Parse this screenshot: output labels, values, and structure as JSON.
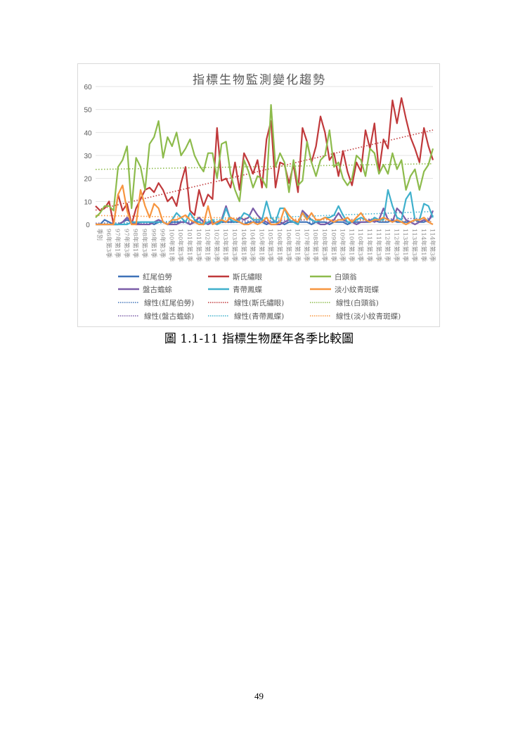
{
  "caption": "圖 1.1-11 指標生物歷年各季比較圖",
  "page_number": "49",
  "chart_data": {
    "type": "line",
    "title": "指標生物監測變化趨勢",
    "xlabel": "",
    "ylabel": "",
    "ylim": [
      0,
      60
    ],
    "yticks": [
      0,
      10,
      20,
      30,
      40,
      50,
      60
    ],
    "grid": true,
    "legend_position": "bottom",
    "tick_labels": [
      "季別",
      "96年第3季",
      "97年第1季",
      "97年第3季",
      "98年第1季",
      "98年第3季",
      "99年第1季",
      "99年第3季",
      "100年第1季",
      "100年第3季",
      "101年第1季",
      "101年第3季",
      "102年第1季",
      "102年第3季",
      "103年第1季",
      "103年第3季",
      "104年第1季",
      "104年第3季",
      "105年第1季",
      "105年第3季",
      "106年第1季",
      "106年第3季",
      "107年第1季",
      "107年第3季",
      "108年第1季",
      "108年第3季",
      "109年第1季",
      "109年第3季",
      "110年第1季",
      "110年第3季",
      "111年第1季",
      "111年第3季",
      "112年第1季",
      "112年第3季",
      "113年第1季",
      "113年第3季",
      "114年第1季",
      "114年第3季"
    ],
    "series": [
      {
        "name": "紅尾伯勞",
        "color": "#3f72b8",
        "values": [
          0,
          0,
          2,
          1,
          0,
          0,
          1,
          2,
          1,
          0,
          1,
          1,
          1,
          0,
          1,
          1,
          0,
          1,
          1,
          1,
          1,
          0,
          1,
          1,
          0,
          1,
          1,
          0,
          1,
          1,
          1,
          1,
          1,
          0,
          1,
          1,
          1,
          1,
          0,
          1,
          1,
          1,
          0,
          1,
          1,
          1,
          1,
          1,
          0,
          1,
          1,
          1,
          0,
          1,
          1,
          1,
          0,
          1,
          1,
          1,
          1,
          1,
          2,
          1,
          1,
          1,
          2,
          1,
          1,
          1,
          1,
          2,
          1,
          1,
          2,
          4
        ]
      },
      {
        "name": "斯氏繡眼",
        "color": "#c0393b",
        "values": [
          8,
          6,
          7,
          10,
          0,
          13,
          6,
          9,
          0,
          7,
          11,
          15,
          16,
          14,
          18,
          15,
          10,
          12,
          8,
          18,
          25,
          6,
          4,
          15,
          8,
          13,
          11,
          42,
          19,
          20,
          16,
          27,
          15,
          31,
          27,
          22,
          28,
          16,
          37,
          45,
          16,
          27,
          26,
          18,
          26,
          14,
          42,
          36,
          27,
          34,
          47,
          40,
          28,
          31,
          21,
          32,
          23,
          17,
          27,
          23,
          41,
          33,
          44,
          23,
          37,
          33,
          54,
          44,
          55,
          46,
          38,
          33,
          27,
          42,
          34,
          28
        ]
      },
      {
        "name": "白頭翁",
        "color": "#8dbb4c",
        "values": [
          3,
          5,
          8,
          8,
          6,
          25,
          28,
          34,
          7,
          29,
          25,
          15,
          35,
          38,
          45,
          29,
          38,
          34,
          40,
          30,
          33,
          37,
          30,
          26,
          23,
          31,
          31,
          20,
          35,
          36,
          22,
          15,
          10,
          28,
          23,
          16,
          21,
          20,
          16,
          52,
          25,
          31,
          27,
          14,
          28,
          17,
          19,
          36,
          27,
          21,
          28,
          30,
          41,
          25,
          27,
          20,
          17,
          20,
          30,
          28,
          21,
          33,
          31,
          22,
          26,
          22,
          31,
          24,
          28,
          15,
          21,
          24,
          15,
          23,
          26,
          33
        ]
      },
      {
        "name": "盤古蟾蜍",
        "color": "#7a5ca8",
        "values": [
          0,
          0,
          0,
          0,
          0,
          0,
          1,
          3,
          1,
          0,
          0,
          0,
          0,
          1,
          2,
          1,
          0,
          0,
          0,
          1,
          1,
          0,
          1,
          3,
          1,
          0,
          1,
          0,
          2,
          8,
          2,
          1,
          3,
          2,
          3,
          7,
          4,
          2,
          1,
          0,
          0,
          0,
          1,
          2,
          1,
          0,
          6,
          4,
          2,
          1,
          0,
          0,
          1,
          2,
          5,
          2,
          1,
          1,
          0,
          1,
          1,
          2,
          1,
          2,
          7,
          2,
          1,
          7,
          5,
          2,
          1,
          0,
          1,
          2,
          1,
          6
        ]
      },
      {
        "name": "青帶鳳蝶",
        "color": "#3fb0cc",
        "values": [
          0,
          0,
          0,
          0,
          0,
          0,
          0,
          0,
          1,
          1,
          1,
          1,
          1,
          1,
          1,
          1,
          0,
          2,
          5,
          3,
          1,
          5,
          2,
          1,
          0,
          1,
          2,
          0,
          1,
          7,
          2,
          1,
          2,
          5,
          4,
          2,
          2,
          2,
          10,
          3,
          1,
          7,
          7,
          2,
          1,
          0,
          5,
          3,
          2,
          1,
          2,
          3,
          3,
          4,
          8,
          4,
          1,
          1,
          2,
          3,
          2,
          1,
          3,
          2,
          2,
          15,
          8,
          3,
          2,
          11,
          14,
          2,
          2,
          9,
          8,
          3
        ]
      },
      {
        "name": "淡小紋青斑蝶",
        "color": "#f7953f",
        "values": [
          0,
          0,
          0,
          0,
          0,
          13,
          17,
          6,
          0,
          0,
          15,
          8,
          3,
          9,
          7,
          1,
          0,
          2,
          2,
          3,
          4,
          2,
          1,
          0,
          0,
          8,
          0,
          1,
          2,
          1,
          3,
          2,
          1,
          0,
          0,
          1,
          0,
          1,
          3,
          0,
          0,
          1,
          7,
          4,
          2,
          1,
          5,
          2,
          5,
          2,
          2,
          3,
          2,
          1,
          2,
          2,
          3,
          1,
          3,
          5,
          2,
          1,
          2,
          2,
          3,
          2,
          1,
          2,
          1,
          0,
          1,
          2,
          2,
          3,
          1,
          0
        ]
      }
    ],
    "trendlines": [
      {
        "name": "線性(紅尾伯勞)",
        "of": "紅尾伯勞",
        "type": "linear",
        "style": "dotted"
      },
      {
        "name": "線性(斯氏繡眼)",
        "of": "斯氏繡眼",
        "type": "linear",
        "style": "dotted"
      },
      {
        "name": "線性(白頭翁)",
        "of": "白頭翁",
        "type": "linear",
        "style": "dotted"
      },
      {
        "name": "線性(盤古蟾蜍)",
        "of": "盤古蟾蜍",
        "type": "linear",
        "style": "dotted"
      },
      {
        "name": "線性(青帶鳳蝶)",
        "of": "青帶鳳蝶",
        "type": "linear",
        "style": "dotted"
      },
      {
        "name": "線性(淡小紋青斑蝶)",
        "of": "淡小紋青斑蝶",
        "type": "linear",
        "style": "dotted"
      }
    ]
  }
}
